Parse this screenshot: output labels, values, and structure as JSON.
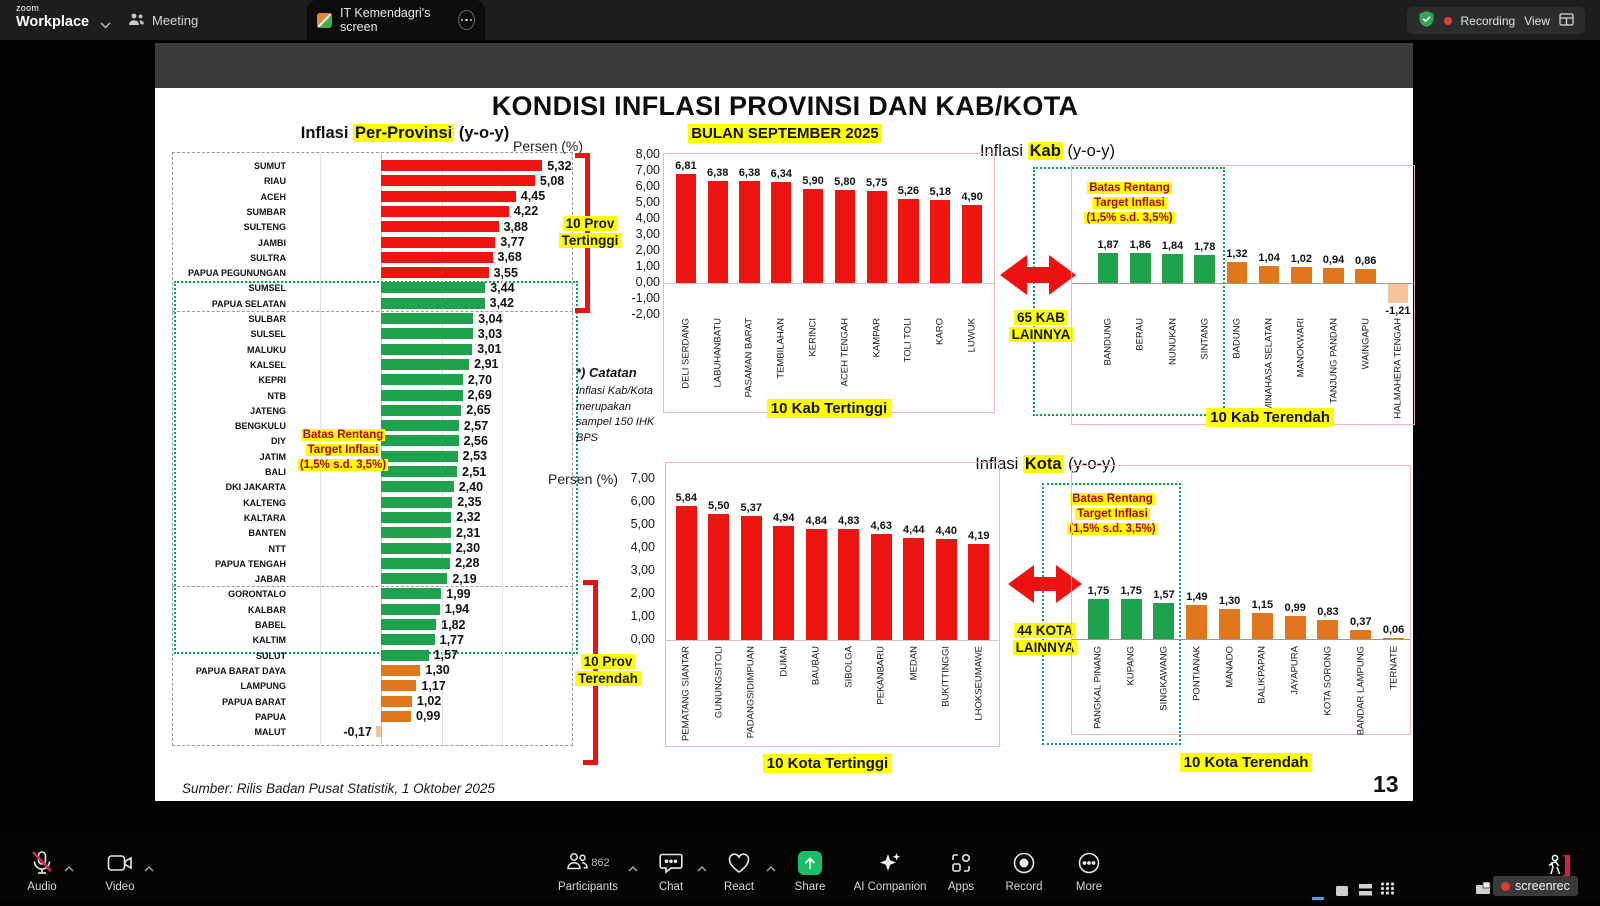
{
  "titlebar": {
    "brand_small": "zoom",
    "brand": "Workplace",
    "tab_meeting": "Meeting",
    "tab_screen": "IT Kemendagri's screen",
    "recording": "Recording",
    "view": "View"
  },
  "toolbar": {
    "audio": {
      "label": "Audio"
    },
    "video": {
      "label": "Video"
    },
    "participants": {
      "label": "Participants",
      "count": "862"
    },
    "chat": {
      "label": "Chat"
    },
    "react": {
      "label": "React"
    },
    "share": {
      "label": "Share"
    },
    "ai": {
      "label": "AI Companion"
    },
    "apps": {
      "label": "Apps"
    },
    "record": {
      "label": "Record"
    },
    "more": {
      "label": "More"
    },
    "screenrec": "screenrec"
  },
  "slide": {
    "title": "KONDISI INFLASI PROVINSI DAN KAB/KOTA",
    "subtitle": "BULAN SEPTEMBER 2025",
    "source": "Sumber: Rilis Badan Pusat Statistik, 1 Oktober 2025",
    "page_number": "13",
    "note_title": "*) Catatan",
    "note_body": "Inflasi Kab/Kota merupakan sampel 150 IHK BPS"
  },
  "palette": {
    "red": "#ee1511",
    "green": "#1fa24e",
    "orange": "#e2761b",
    "peach": "#f6c49c"
  },
  "chart_data": [
    {
      "id": "provinsi",
      "type": "bar",
      "orientation": "horizontal",
      "title": {
        "pre": "Inflasi ",
        "highlight": "Per-Provinsi",
        "post": " (y-o-y)"
      },
      "axis_label": "Persen (%)",
      "xlim": [
        -2,
        8
      ],
      "annotations": {
        "top_bracket": [
          "10 Prov",
          "Tertinggi"
        ],
        "bottom_bracket": [
          "10 Prov",
          "Terendah"
        ],
        "target_range": [
          "Batas Rentang",
          "Target Inflasi",
          "(1,5% s.d. 3,5%)"
        ]
      },
      "items": [
        {
          "label": "SUMUT",
          "value": "5,32",
          "color": "red"
        },
        {
          "label": "RIAU",
          "value": "5,08",
          "color": "red"
        },
        {
          "label": "ACEH",
          "value": "4,45",
          "color": "red"
        },
        {
          "label": "SUMBAR",
          "value": "4,22",
          "color": "red"
        },
        {
          "label": "SULTENG",
          "value": "3,88",
          "color": "red"
        },
        {
          "label": "JAMBI",
          "value": "3,77",
          "color": "red"
        },
        {
          "label": "SULTRA",
          "value": "3,68",
          "color": "red"
        },
        {
          "label": "PAPUA PEGUNUNGAN",
          "value": "3,55",
          "color": "red"
        },
        {
          "label": "SUMSEL",
          "value": "3,44",
          "color": "green"
        },
        {
          "label": "PAPUA SELATAN",
          "value": "3,42",
          "color": "green"
        },
        {
          "label": "SULBAR",
          "value": "3,04",
          "color": "green"
        },
        {
          "label": "SULSEL",
          "value": "3,03",
          "color": "green"
        },
        {
          "label": "MALUKU",
          "value": "3,01",
          "color": "green"
        },
        {
          "label": "KALSEL",
          "value": "2,91",
          "color": "green"
        },
        {
          "label": "KEPRI",
          "value": "2,70",
          "color": "green"
        },
        {
          "label": "NTB",
          "value": "2,69",
          "color": "green"
        },
        {
          "label": "JATENG",
          "value": "2,65",
          "color": "green"
        },
        {
          "label": "BENGKULU",
          "value": "2,57",
          "color": "green"
        },
        {
          "label": "DIY",
          "value": "2,56",
          "color": "green"
        },
        {
          "label": "JATIM",
          "value": "2,53",
          "color": "green"
        },
        {
          "label": "BALI",
          "value": "2,51",
          "color": "green"
        },
        {
          "label": "DKI JAKARTA",
          "value": "2,40",
          "color": "green"
        },
        {
          "label": "KALTENG",
          "value": "2,35",
          "color": "green"
        },
        {
          "label": "KALTARA",
          "value": "2,32",
          "color": "green"
        },
        {
          "label": "BANTEN",
          "value": "2,31",
          "color": "green"
        },
        {
          "label": "NTT",
          "value": "2,30",
          "color": "green"
        },
        {
          "label": "PAPUA TENGAH",
          "value": "2,28",
          "color": "green"
        },
        {
          "label": "JABAR",
          "value": "2,19",
          "color": "green"
        },
        {
          "label": "GORONTALO",
          "value": "1,99",
          "color": "green"
        },
        {
          "label": "KALBAR",
          "value": "1,94",
          "color": "green"
        },
        {
          "label": "BABEL",
          "value": "1,82",
          "color": "green"
        },
        {
          "label": "KALTIM",
          "value": "1,77",
          "color": "green"
        },
        {
          "label": "SULUT",
          "value": "1,57",
          "color": "green"
        },
        {
          "label": "PAPUA BARAT DAYA",
          "value": "1,30",
          "color": "orange"
        },
        {
          "label": "LAMPUNG",
          "value": "1,17",
          "color": "orange"
        },
        {
          "label": "PAPUA BARAT",
          "value": "1,02",
          "color": "orange"
        },
        {
          "label": "PAPUA",
          "value": "0,99",
          "color": "orange"
        },
        {
          "label": "MALUT",
          "value": "-0,17",
          "color": "peach"
        }
      ]
    },
    {
      "id": "kab_tertinggi",
      "type": "bar",
      "orientation": "vertical",
      "title": {
        "pre": "Inflasi ",
        "highlight": "Kab",
        "post": " (y-o-y)"
      },
      "axis_label": "Persen (%)",
      "ylim": [
        -2,
        8
      ],
      "yticks": [
        "8,00",
        "7,00",
        "6,00",
        "5,00",
        "4,00",
        "3,00",
        "2,00",
        "1,00",
        "0,00",
        "-1,00",
        "-2,00"
      ],
      "footer": "10 Kab Tertinggi",
      "items": [
        {
          "label": "DELI SERDANG",
          "value": "6,81",
          "color": "red"
        },
        {
          "label": "LABUHANBATU",
          "value": "6,38",
          "color": "red"
        },
        {
          "label": "PASAMAN BARAT",
          "value": "6,38",
          "color": "red"
        },
        {
          "label": "TEMBILAHAN",
          "value": "6,34",
          "color": "red"
        },
        {
          "label": "KERINCI",
          "value": "5,90",
          "color": "red"
        },
        {
          "label": "ACEH TENGAH",
          "value": "5,80",
          "color": "red"
        },
        {
          "label": "KAMPAR",
          "value": "5,75",
          "color": "red"
        },
        {
          "label": "TOLI TOLI",
          "value": "5,26",
          "color": "red"
        },
        {
          "label": "KARO",
          "value": "5,18",
          "color": "red"
        },
        {
          "label": "LUWUK",
          "value": "4,90",
          "color": "red"
        }
      ]
    },
    {
      "id": "kab_terendah",
      "type": "bar",
      "orientation": "vertical",
      "footer": "10 Kab Terendah",
      "side_label": [
        "65 KAB",
        "LAINNYA"
      ],
      "target_range": [
        "Batas Rentang",
        "Target Inflasi",
        "(1,5% s.d. 3,5%)"
      ],
      "items": [
        {
          "label": "BANDUNG",
          "value": "1,87",
          "color": "green"
        },
        {
          "label": "BERAU",
          "value": "1,86",
          "color": "green"
        },
        {
          "label": "NUNUKAN",
          "value": "1,84",
          "color": "green"
        },
        {
          "label": "SINTANG",
          "value": "1,78",
          "color": "green"
        },
        {
          "label": "BADUNG",
          "value": "1,32",
          "color": "orange"
        },
        {
          "label": "MINAHASA SELATAN",
          "value": "1,04",
          "color": "orange"
        },
        {
          "label": "MANOKWARI",
          "value": "1,02",
          "color": "orange"
        },
        {
          "label": "TANJUNG PANDAN",
          "value": "0,94",
          "color": "orange"
        },
        {
          "label": "WAINGAPU",
          "value": "0,86",
          "color": "orange"
        },
        {
          "label": "HALMAHERA TENGAH",
          "value": "-1,21",
          "color": "peach"
        }
      ]
    },
    {
      "id": "kota_tertinggi",
      "type": "bar",
      "orientation": "vertical",
      "title": {
        "pre": "Inflasi ",
        "highlight": "Kota",
        "post": " (y-o-y)"
      },
      "axis_label": "Persen (%)",
      "ylim": [
        0,
        7
      ],
      "yticks": [
        "7,00",
        "6,00",
        "5,00",
        "4,00",
        "3,00",
        "2,00",
        "1,00",
        "0,00"
      ],
      "footer": "10 Kota Tertinggi",
      "items": [
        {
          "label": "PEMATANG SIANTAR",
          "value": "5,84",
          "color": "red"
        },
        {
          "label": "GUNUNGSITOLI",
          "value": "5,50",
          "color": "red"
        },
        {
          "label": "PADANGSIDIMPUAN",
          "value": "5,37",
          "color": "red"
        },
        {
          "label": "DUMAI",
          "value": "4,94",
          "color": "red"
        },
        {
          "label": "BAUBAU",
          "value": "4,84",
          "color": "red"
        },
        {
          "label": "SIBOLGA",
          "value": "4,83",
          "color": "red"
        },
        {
          "label": "PEKANBARU",
          "value": "4,63",
          "color": "red"
        },
        {
          "label": "MEDAN",
          "value": "4,44",
          "color": "red"
        },
        {
          "label": "BUKITTINGGI",
          "value": "4,40",
          "color": "red"
        },
        {
          "label": "LHOKSEUMAWE",
          "value": "4,19",
          "color": "red"
        }
      ]
    },
    {
      "id": "kota_terendah",
      "type": "bar",
      "orientation": "vertical",
      "footer": "10 Kota Terendah",
      "side_label": [
        "44 KOTA",
        "LAINNYA"
      ],
      "target_range": [
        "Batas Rentang",
        "Target Inflasi",
        "(1,5% s.d. 3,5%)"
      ],
      "items": [
        {
          "label": "PANGKAL PINANG",
          "value": "1,75",
          "color": "green"
        },
        {
          "label": "KUPANG",
          "value": "1,75",
          "color": "green"
        },
        {
          "label": "SINGKAWANG",
          "value": "1,57",
          "color": "green"
        },
        {
          "label": "PONTIANAK",
          "value": "1,49",
          "color": "orange"
        },
        {
          "label": "MANADO",
          "value": "1,30",
          "color": "orange"
        },
        {
          "label": "BALIKPAPAN",
          "value": "1,15",
          "color": "orange"
        },
        {
          "label": "JAYAPURA",
          "value": "0,99",
          "color": "orange"
        },
        {
          "label": "KOTA SORONG",
          "value": "0,83",
          "color": "orange"
        },
        {
          "label": "BANDAR LAMPUNG",
          "value": "0,37",
          "color": "orange"
        },
        {
          "label": "TERNATE",
          "value": "0,06",
          "color": "orange"
        }
      ]
    }
  ]
}
